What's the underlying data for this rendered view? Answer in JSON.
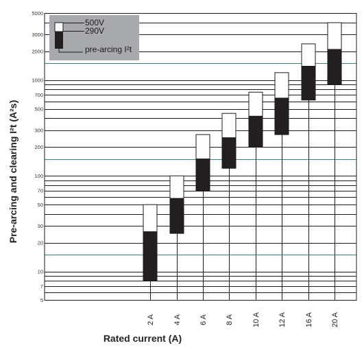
{
  "chart_data": {
    "type": "floating-bar",
    "xlabel": "Rated current (A)",
    "ylabel": "Pre-arcing and clearing I²t (A²s)",
    "yscale": "log",
    "ylim": [
      5,
      5000
    ],
    "grid": true,
    "legend_position": "top-left",
    "legend": {
      "upper": "500V",
      "lower": "290V",
      "pre_arcing": "pre-arcing I²t"
    },
    "y_ticks": [
      5,
      7,
      10,
      15,
      20,
      30,
      50,
      70,
      100,
      150,
      200,
      300,
      500,
      700,
      1000,
      1500,
      2000,
      3000,
      5000
    ],
    "y_tick_labels": [
      "5",
      "7",
      "10",
      "",
      "20",
      "30",
      "50",
      "70",
      "100",
      "",
      "200",
      "300",
      "500",
      "700",
      "1000",
      "",
      "2000",
      "3000",
      "5000"
    ],
    "categories": [
      "2 A",
      "4 A",
      "6 A",
      "8 A",
      "10 A",
      "12 A",
      "16 A",
      "20 A"
    ],
    "series": [
      {
        "name": "pre-arcing I²t",
        "low": [
          8,
          25,
          70,
          120,
          200,
          270,
          620,
          900
        ],
        "high": [
          26,
          58,
          150,
          250,
          420,
          650,
          1400,
          2100
        ]
      },
      {
        "name": "500V",
        "low": [
          26,
          58,
          150,
          250,
          420,
          650,
          1400,
          2100
        ],
        "high": [
          50,
          100,
          270,
          450,
          750,
          1200,
          2400,
          4000
        ]
      }
    ],
    "colors": {
      "pre_arcing": "#231f20",
      "clearing": "#ffffff",
      "grid_dark": "#1a1a1a",
      "grid_teal": "#3d7d7a",
      "legend_bg": "#a7a9ac"
    }
  }
}
